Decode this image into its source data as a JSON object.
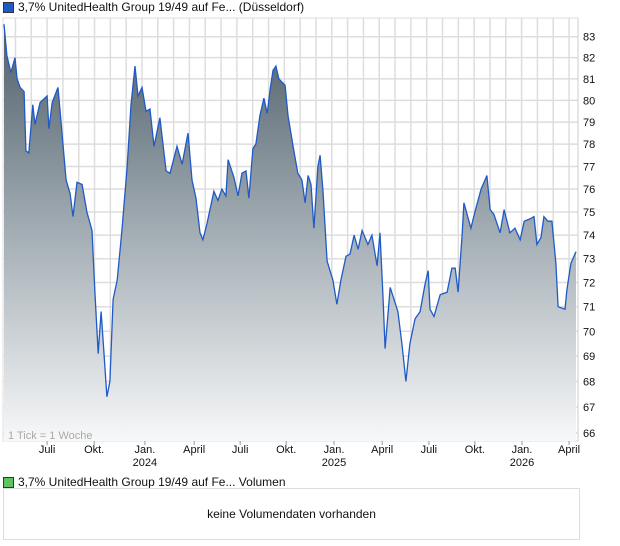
{
  "legend": {
    "title": "3,7% UnitedHealth Group 19/49 auf Fe... (Düsseldorf)",
    "color": "#1f5ac6"
  },
  "volume": {
    "title": "3,7% UnitedHealth Group 19/49 auf Fe... Volumen",
    "color": "#5ec45e",
    "empty_text": "keine Volumendaten vorhanden"
  },
  "chart_data": {
    "type": "area",
    "title": "3,7% UnitedHealth Group 19/49 auf Fe... (Düsseldorf)",
    "note": "1 Tick = 1 Woche",
    "xlabel": "",
    "ylabel": "",
    "x_unit": "weeks since start",
    "xlim": [
      0,
      156.7
    ],
    "ylim": [
      66,
      83.8
    ],
    "y_scale": "log",
    "y_ticks": [
      66,
      67,
      68,
      69,
      70,
      71,
      72,
      73,
      74,
      75,
      76,
      77,
      78,
      79,
      80,
      81,
      82,
      83
    ],
    "x_ticks": [
      {
        "x": 11.8,
        "label": "Juli",
        "year": ""
      },
      {
        "x": 24.7,
        "label": "Okt.",
        "year": ""
      },
      {
        "x": 38.6,
        "label": "Jan.",
        "year": "2024"
      },
      {
        "x": 52.1,
        "label": "April",
        "year": ""
      },
      {
        "x": 64.7,
        "label": "Juli",
        "year": ""
      },
      {
        "x": 77.3,
        "label": "Okt.",
        "year": ""
      },
      {
        "x": 90.4,
        "label": "Jan.",
        "year": "2025"
      },
      {
        "x": 103.6,
        "label": "April",
        "year": ""
      },
      {
        "x": 116.4,
        "label": "Juli",
        "year": ""
      },
      {
        "x": 129.0,
        "label": "Okt.",
        "year": ""
      },
      {
        "x": 141.9,
        "label": "Jan.",
        "year": "2026"
      },
      {
        "x": 154.8,
        "label": "April",
        "year": ""
      }
    ],
    "grid": true,
    "series": [
      {
        "name": "3,7% UnitedHealth Group 19/49",
        "points": [
          [
            0,
            83.6
          ],
          [
            0.8,
            82.1
          ],
          [
            1.9,
            81.3
          ],
          [
            3.0,
            82.0
          ],
          [
            3.6,
            81.0
          ],
          [
            4.4,
            80.6
          ],
          [
            5.5,
            80.4
          ],
          [
            6.0,
            77.7
          ],
          [
            6.8,
            77.6
          ],
          [
            7.9,
            79.8
          ],
          [
            8.5,
            78.9
          ],
          [
            9.9,
            79.9
          ],
          [
            11.8,
            80.2
          ],
          [
            12.3,
            78.7
          ],
          [
            13.2,
            79.9
          ],
          [
            14.8,
            80.6
          ],
          [
            15.9,
            78.5
          ],
          [
            17.0,
            76.4
          ],
          [
            18.1,
            75.8
          ],
          [
            18.9,
            74.8
          ],
          [
            20.0,
            76.3
          ],
          [
            21.4,
            76.2
          ],
          [
            22.7,
            75.0
          ],
          [
            24.1,
            74.2
          ],
          [
            24.9,
            71.6
          ],
          [
            25.8,
            69.1
          ],
          [
            26.6,
            70.8
          ],
          [
            27.4,
            69.1
          ],
          [
            28.2,
            67.4
          ],
          [
            29.0,
            68.0
          ],
          [
            29.9,
            71.3
          ],
          [
            31.0,
            72.1
          ],
          [
            32.3,
            74.2
          ],
          [
            33.7,
            76.9
          ],
          [
            34.8,
            79.8
          ],
          [
            35.9,
            81.6
          ],
          [
            36.7,
            80.2
          ],
          [
            37.8,
            80.6
          ],
          [
            38.9,
            79.5
          ],
          [
            40.0,
            79.6
          ],
          [
            41.1,
            77.9
          ],
          [
            42.7,
            79.2
          ],
          [
            44.4,
            76.8
          ],
          [
            45.5,
            76.7
          ],
          [
            47.4,
            77.9
          ],
          [
            48.8,
            77.1
          ],
          [
            50.4,
            78.5
          ],
          [
            51.5,
            76.4
          ],
          [
            52.6,
            75.6
          ],
          [
            53.7,
            74.1
          ],
          [
            54.5,
            73.8
          ],
          [
            55.6,
            74.5
          ],
          [
            57.5,
            75.9
          ],
          [
            58.6,
            75.5
          ],
          [
            59.7,
            76.0
          ],
          [
            60.8,
            75.7
          ],
          [
            61.4,
            77.3
          ],
          [
            63.0,
            76.5
          ],
          [
            64.1,
            75.7
          ],
          [
            65.2,
            76.7
          ],
          [
            66.3,
            76.8
          ],
          [
            67.1,
            75.6
          ],
          [
            68.2,
            77.8
          ],
          [
            69.0,
            78.0
          ],
          [
            70.1,
            79.3
          ],
          [
            71.2,
            80.1
          ],
          [
            72.1,
            79.4
          ],
          [
            72.9,
            80.5
          ],
          [
            73.7,
            81.4
          ],
          [
            74.5,
            81.6
          ],
          [
            75.3,
            81.0
          ],
          [
            77.0,
            80.7
          ],
          [
            77.8,
            79.3
          ],
          [
            79.2,
            77.9
          ],
          [
            80.5,
            76.7
          ],
          [
            81.6,
            76.4
          ],
          [
            82.5,
            75.4
          ],
          [
            83.3,
            76.6
          ],
          [
            84.1,
            76.2
          ],
          [
            84.9,
            74.3
          ],
          [
            86.0,
            77.0
          ],
          [
            86.6,
            77.5
          ],
          [
            87.4,
            75.9
          ],
          [
            88.5,
            72.9
          ],
          [
            90.1,
            72.1
          ],
          [
            91.2,
            71.1
          ],
          [
            92.3,
            72.1
          ],
          [
            93.7,
            73.1
          ],
          [
            94.8,
            73.2
          ],
          [
            95.9,
            74.0
          ],
          [
            97.0,
            73.4
          ],
          [
            98.1,
            74.2
          ],
          [
            99.7,
            73.6
          ],
          [
            100.8,
            74.0
          ],
          [
            102.2,
            72.7
          ],
          [
            103.0,
            74.1
          ],
          [
            103.8,
            71.5
          ],
          [
            104.4,
            69.3
          ],
          [
            105.8,
            71.8
          ],
          [
            107.9,
            70.8
          ],
          [
            109.0,
            69.5
          ],
          [
            110.1,
            68.0
          ],
          [
            111.2,
            69.5
          ],
          [
            112.6,
            70.5
          ],
          [
            114.0,
            70.8
          ],
          [
            115.3,
            71.9
          ],
          [
            116.2,
            72.5
          ],
          [
            116.7,
            70.9
          ],
          [
            117.8,
            70.6
          ],
          [
            119.5,
            71.5
          ],
          [
            121.4,
            71.6
          ],
          [
            122.7,
            72.6
          ],
          [
            123.6,
            72.6
          ],
          [
            124.4,
            71.6
          ],
          [
            125.5,
            74.0
          ],
          [
            126.0,
            75.4
          ],
          [
            127.9,
            74.3
          ],
          [
            129.0,
            75.0
          ],
          [
            130.7,
            76.0
          ],
          [
            132.3,
            76.6
          ],
          [
            133.2,
            75.1
          ],
          [
            134.2,
            74.9
          ],
          [
            135.9,
            74.1
          ],
          [
            137.0,
            75.1
          ],
          [
            138.6,
            74.1
          ],
          [
            140.0,
            74.3
          ],
          [
            141.4,
            73.8
          ],
          [
            142.5,
            74.6
          ],
          [
            144.1,
            74.7
          ],
          [
            145.2,
            74.8
          ],
          [
            146.0,
            73.6
          ],
          [
            147.1,
            73.9
          ],
          [
            147.9,
            74.8
          ],
          [
            149.0,
            74.6
          ],
          [
            150.1,
            74.6
          ],
          [
            151.2,
            72.8
          ],
          [
            151.8,
            71.0
          ],
          [
            153.7,
            70.9
          ],
          [
            154.2,
            71.7
          ],
          [
            155.3,
            72.8
          ],
          [
            156.7,
            73.3
          ]
        ]
      }
    ]
  }
}
